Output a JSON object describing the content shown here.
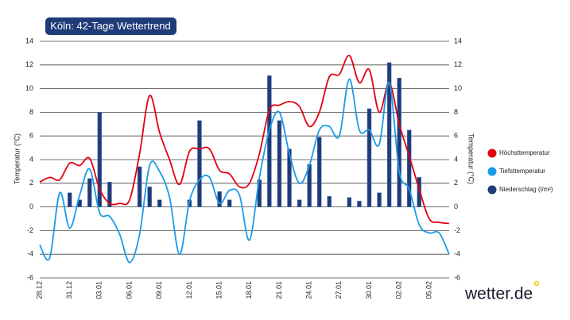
{
  "chart_data": {
    "type": "combo",
    "title": "Köln: 42-Tage Wettertrend",
    "y_label": "Temperatur (°C)",
    "y2_label": "Temperatur (°C)",
    "categories": [
      "28.12",
      null,
      null,
      "31.12",
      null,
      null,
      "03.01",
      null,
      null,
      "06.01",
      null,
      null,
      "09.01",
      null,
      null,
      "12.01",
      null,
      null,
      "15.01",
      null,
      null,
      "18.01",
      null,
      null,
      "21.01",
      null,
      null,
      "24.01",
      null,
      null,
      "27.01",
      null,
      null,
      "30.01",
      null,
      null,
      "02.02",
      null,
      null,
      "05.02",
      null,
      null
    ],
    "series": [
      {
        "name": "Höchsttemperatur",
        "type": "line",
        "color": "#e3000f",
        "values": [
          2.1,
          2.5,
          2.3,
          3.7,
          3.5,
          4.1,
          1.5,
          0.3,
          0.3,
          0.6,
          4.5,
          9.4,
          6.3,
          4.0,
          1.9,
          4.7,
          4.9,
          4.9,
          3.1,
          2.8,
          1.7,
          2.0,
          4.5,
          8.2,
          8.6,
          8.9,
          8.5,
          6.8,
          8.0,
          11.0,
          11.2,
          12.8,
          10.5,
          11.6,
          8.0,
          10.5,
          7.0,
          4.3,
          1.5,
          -1.0,
          -1.3,
          -1.4
        ]
      },
      {
        "name": "Tiefsttemperatur",
        "type": "line",
        "color": "#1a9be8",
        "values": [
          -3.2,
          -4.3,
          1.2,
          -1.8,
          1.0,
          3.2,
          -0.5,
          -0.8,
          -2.3,
          -4.7,
          -2.3,
          3.5,
          3.0,
          0.8,
          -4.0,
          0.5,
          2.3,
          2.5,
          0.3,
          1.4,
          1.0,
          -2.8,
          2.5,
          6.5,
          8.0,
          4.5,
          2.0,
          3.5,
          6.5,
          6.8,
          6.0,
          10.8,
          6.5,
          6.5,
          5.3,
          10.5,
          3.0,
          1.5,
          -1.5,
          -2.2,
          -2.2,
          -4.0
        ]
      },
      {
        "name": "Niederschlag (l/m²)",
        "type": "bar",
        "axis": "y2",
        "color": "#1f3c78",
        "values": [
          0,
          0,
          0,
          1.2,
          0.6,
          2.4,
          8.0,
          2.1,
          0,
          0,
          3.4,
          1.7,
          0.6,
          0,
          0,
          0.6,
          7.3,
          0,
          1.3,
          0.6,
          0,
          0,
          2.3,
          11.1,
          7.3,
          4.9,
          0.6,
          3.6,
          5.9,
          0.9,
          0,
          0.8,
          0.5,
          8.3,
          1.2,
          12.2,
          10.9,
          6.5,
          2.5,
          0,
          0,
          0
        ]
      }
    ],
    "ylim": [
      -6,
      14
    ],
    "yticks": [
      -6,
      -4,
      -2,
      0,
      2,
      4,
      6,
      8,
      10,
      12,
      14
    ],
    "y2lim": [
      -6,
      14
    ],
    "y2ticks": [
      -6,
      -4,
      -2,
      0,
      2,
      4,
      6,
      8,
      10,
      12,
      14
    ],
    "grid": true,
    "legend": "right"
  },
  "brand": "wetter.de"
}
